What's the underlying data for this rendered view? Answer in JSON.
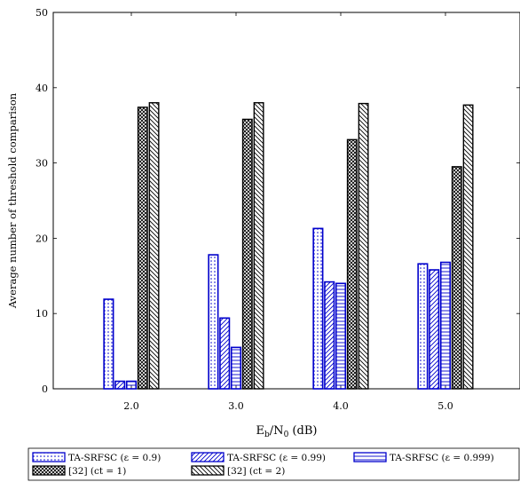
{
  "chart_data": {
    "type": "bar",
    "xlabel_main": "E",
    "xlabel_sub1": "b",
    "xlabel_mid": "/N",
    "xlabel_sub2": "0",
    "xlabel_unit": " (dB)",
    "ylabel": "Average number of threshold comparison",
    "categories": [
      "2.0",
      "3.0",
      "4.0",
      "5.0"
    ],
    "ylim": [
      0,
      50
    ],
    "yticks": [
      0,
      10,
      20,
      30,
      40,
      50
    ],
    "grid": false,
    "legend_position": "bottom",
    "series": [
      {
        "name": "TA-SRFSC (ε = 0.9)",
        "values": [
          11.9,
          17.8,
          21.3,
          16.6
        ],
        "pattern": "dots",
        "color": "#0000cc"
      },
      {
        "name": "TA-SRFSC (ε = 0.99)",
        "values": [
          1.0,
          9.4,
          14.2,
          15.8
        ],
        "pattern": "diag-right",
        "color": "#0000cc"
      },
      {
        "name": "TA-SRFSC (ε = 0.999)",
        "values": [
          1.0,
          5.5,
          14.0,
          16.8
        ],
        "pattern": "horizontal",
        "color": "#0000cc"
      },
      {
        "name": "[32] (ct = 1)",
        "values": [
          37.4,
          35.8,
          33.1,
          29.5
        ],
        "pattern": "crosshatch",
        "color": "#000000"
      },
      {
        "name": "[32] (ct = 2)",
        "values": [
          38.0,
          38.0,
          37.9,
          37.7
        ],
        "pattern": "diag-left",
        "color": "#000000"
      }
    ]
  }
}
